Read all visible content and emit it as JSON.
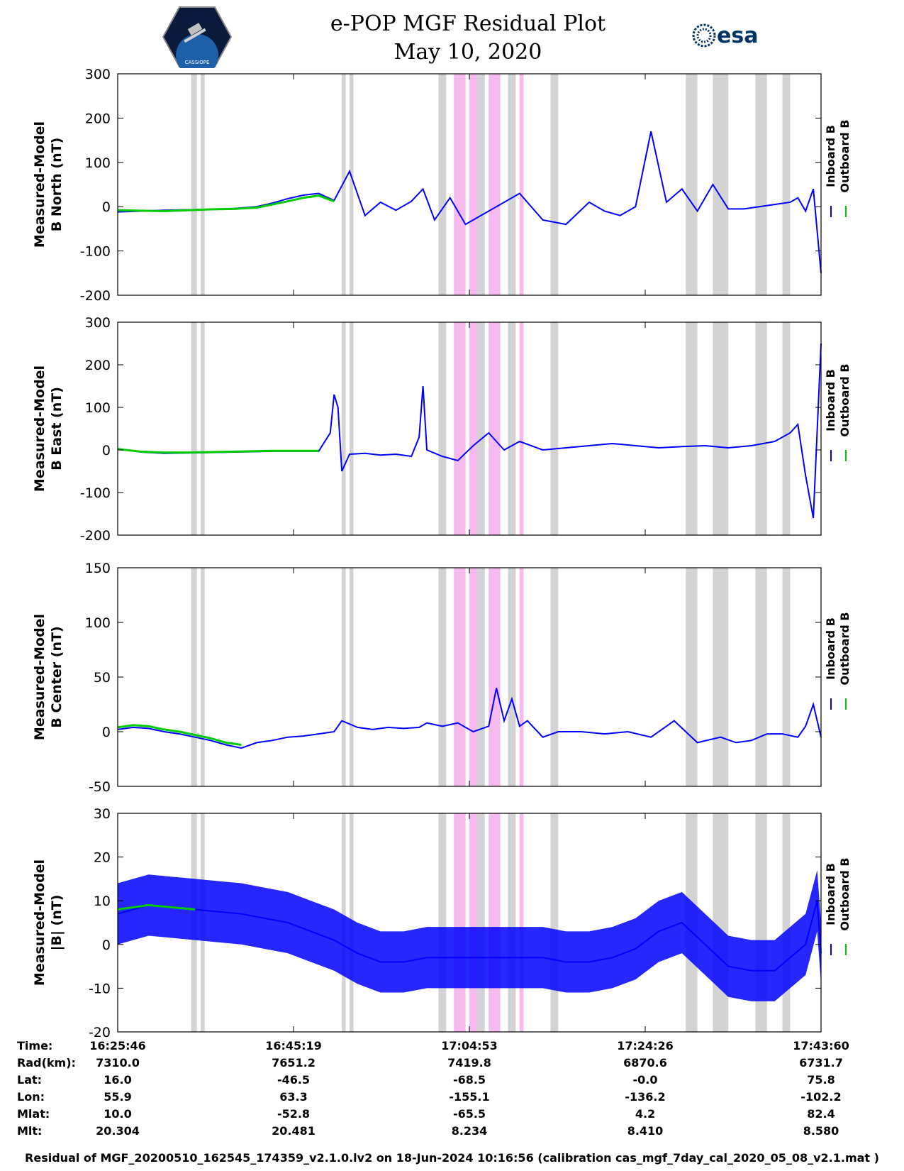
{
  "title": "e-POP MGF Residual Plot",
  "subtitle": "May 10, 2020",
  "logo_left": {
    "icon": "cassiope-mission-logo",
    "text": "CASSIOPE"
  },
  "logo_right": {
    "icon": "esa-logo",
    "text": "esa"
  },
  "legend": {
    "inboard": "Inboard B",
    "outboard": "Outboard B",
    "inboard_color": "#0000ff",
    "outboard_color": "#00cc00"
  },
  "colors": {
    "flag_gray": "#d3d3d3",
    "flag_pink": "#f6b9f0",
    "axis": "#000000"
  },
  "chart_data": [
    {
      "type": "line",
      "ylabel_line1": "Measured-Model",
      "ylabel_line2": "B North (nT)",
      "ylim": [
        -200,
        300
      ],
      "yticks": [
        "300",
        "200",
        "100",
        "0",
        "-100",
        "-200"
      ],
      "ytick_values": [
        300,
        200,
        100,
        0,
        -100,
        -200
      ],
      "x_minutes": [
        0,
        6,
        12,
        18,
        24,
        30,
        36,
        40,
        44,
        48,
        52,
        56,
        60,
        64,
        68,
        72,
        76,
        79,
        82,
        86,
        90,
        94,
        98,
        104,
        110,
        116,
        122,
        126,
        130,
        134,
        138,
        142,
        146,
        150,
        154,
        158,
        162,
        166,
        170,
        174,
        176,
        178,
        180,
        182
      ],
      "inboard": [
        -12,
        -10,
        -8,
        -7,
        -6,
        -4,
        0,
        8,
        18,
        26,
        30,
        14,
        80,
        -20,
        10,
        -8,
        12,
        40,
        -30,
        20,
        -40,
        -20,
        0,
        30,
        -30,
        -40,
        10,
        -10,
        -20,
        0,
        170,
        10,
        40,
        -10,
        50,
        -5,
        -5,
        0,
        5,
        10,
        20,
        -10,
        40,
        -150
      ],
      "outboard": [
        -8,
        -9,
        -10,
        -8,
        -6,
        -5,
        -2,
        5,
        12,
        20,
        25,
        12
      ],
      "gray_bands_min": [
        [
          19,
          20.5
        ],
        [
          21.5,
          22.5
        ],
        [
          58,
          59
        ],
        [
          60,
          61
        ],
        [
          83,
          85
        ],
        [
          93,
          95
        ],
        [
          101,
          103
        ],
        [
          112,
          114
        ],
        [
          147,
          150
        ],
        [
          154,
          158
        ],
        [
          165,
          168
        ],
        [
          172,
          174
        ]
      ],
      "pink_bands_min": [
        [
          87,
          90
        ],
        [
          91,
          93
        ],
        [
          96,
          99
        ],
        [
          104,
          105
        ]
      ]
    },
    {
      "type": "line",
      "ylabel_line1": "Measured-Model",
      "ylabel_line2": "B East (nT)",
      "ylim": [
        -200,
        300
      ],
      "yticks": [
        "300",
        "200",
        "100",
        "0",
        "-100",
        "-200"
      ],
      "ytick_values": [
        300,
        200,
        100,
        0,
        -100,
        -200
      ],
      "x_minutes": [
        0,
        6,
        12,
        18,
        24,
        30,
        36,
        40,
        44,
        48,
        52,
        55,
        56,
        57,
        58,
        60,
        64,
        68,
        72,
        76,
        78,
        79,
        80,
        84,
        88,
        92,
        96,
        100,
        104,
        110,
        116,
        122,
        128,
        134,
        140,
        146,
        152,
        158,
        164,
        170,
        174,
        176,
        178,
        180,
        182
      ],
      "inboard": [
        3,
        -5,
        -8,
        -7,
        -6,
        -5,
        -4,
        -3,
        -3,
        -3,
        -3,
        40,
        130,
        100,
        -50,
        -10,
        -8,
        -12,
        -10,
        -15,
        30,
        150,
        0,
        -15,
        -25,
        10,
        40,
        0,
        20,
        0,
        5,
        10,
        15,
        10,
        5,
        8,
        10,
        5,
        10,
        20,
        40,
        60,
        -60,
        -160,
        250
      ],
      "outboard": [
        2,
        -4,
        -6,
        -6,
        -5,
        -4,
        -3,
        -2,
        -2,
        -2,
        -2
      ],
      "gray_bands_min": [
        [
          19,
          20.5
        ],
        [
          21.5,
          22.5
        ],
        [
          58,
          59
        ],
        [
          60,
          61
        ],
        [
          83,
          85
        ],
        [
          93,
          95
        ],
        [
          101,
          103
        ],
        [
          112,
          114
        ],
        [
          147,
          150
        ],
        [
          154,
          158
        ],
        [
          165,
          168
        ],
        [
          172,
          174
        ]
      ],
      "pink_bands_min": [
        [
          87,
          90
        ],
        [
          91,
          93
        ],
        [
          96,
          99
        ],
        [
          104,
          105
        ]
      ]
    },
    {
      "type": "line",
      "ylabel_line1": "Measured-Model",
      "ylabel_line2": "B Center (nT)",
      "ylim": [
        -50,
        150
      ],
      "yticks": [
        "150",
        "100",
        "50",
        "0",
        "-50"
      ],
      "ytick_values": [
        150,
        100,
        50,
        0,
        -50
      ],
      "x_minutes": [
        0,
        4,
        8,
        12,
        16,
        20,
        24,
        28,
        32,
        36,
        40,
        44,
        48,
        52,
        56,
        58,
        62,
        66,
        70,
        74,
        78,
        80,
        84,
        88,
        92,
        96,
        98,
        100,
        102,
        104,
        106,
        110,
        114,
        120,
        126,
        132,
        138,
        144,
        150,
        156,
        160,
        164,
        168,
        172,
        176,
        178,
        180,
        182
      ],
      "inboard": [
        2,
        4,
        3,
        0,
        -2,
        -5,
        -8,
        -12,
        -15,
        -10,
        -8,
        -5,
        -4,
        -2,
        0,
        10,
        4,
        2,
        4,
        3,
        4,
        8,
        5,
        8,
        0,
        5,
        40,
        10,
        30,
        5,
        10,
        -5,
        0,
        0,
        -2,
        0,
        -5,
        10,
        -10,
        -5,
        -10,
        -8,
        -2,
        -2,
        -5,
        5,
        25,
        -5
      ],
      "outboard": [
        4,
        6,
        5,
        2,
        0,
        -3,
        -6,
        -10,
        -12
      ],
      "gray_bands_min": [
        [
          19,
          20.5
        ],
        [
          21.5,
          22.5
        ],
        [
          58,
          59
        ],
        [
          60,
          61
        ],
        [
          83,
          85
        ],
        [
          93,
          95
        ],
        [
          101,
          103
        ],
        [
          112,
          114
        ],
        [
          147,
          150
        ],
        [
          154,
          158
        ],
        [
          165,
          168
        ],
        [
          172,
          174
        ]
      ],
      "pink_bands_min": [
        [
          87,
          90
        ],
        [
          91,
          93
        ],
        [
          96,
          99
        ],
        [
          104,
          105
        ]
      ]
    },
    {
      "type": "line",
      "ylabel_line1": "Measured-Model",
      "ylabel_line2": "|B| (nT)",
      "ylim": [
        -20,
        30
      ],
      "yticks": [
        "30",
        "20",
        "10",
        "0",
        "-10",
        "-20"
      ],
      "ytick_values": [
        30,
        20,
        10,
        0,
        -10,
        -20
      ],
      "x_minutes": [
        0,
        4,
        8,
        14,
        20,
        26,
        32,
        38,
        44,
        50,
        56,
        62,
        68,
        74,
        80,
        86,
        92,
        98,
        104,
        110,
        116,
        122,
        128,
        134,
        140,
        146,
        152,
        158,
        164,
        170,
        174,
        178,
        181,
        182
      ],
      "inboard": [
        7,
        8,
        9,
        8.5,
        8,
        7.5,
        7,
        6,
        5,
        3,
        1,
        -2,
        -4,
        -4,
        -3,
        -3,
        -3,
        -3,
        -3,
        -3,
        -4,
        -4,
        -3,
        -1,
        3,
        5,
        0,
        -5,
        -6,
        -6,
        -3,
        0,
        10,
        -2
      ],
      "outboard": [
        8,
        8.5,
        9,
        8.5,
        8
      ],
      "band_half_width": 7,
      "gray_bands_min": [
        [
          19,
          20.5
        ],
        [
          21.5,
          22.5
        ],
        [
          58,
          59
        ],
        [
          60,
          61
        ],
        [
          83,
          85
        ],
        [
          93,
          95
        ],
        [
          101,
          103
        ],
        [
          112,
          114
        ],
        [
          147,
          150
        ],
        [
          154,
          158
        ],
        [
          165,
          168
        ],
        [
          172,
          174
        ]
      ],
      "pink_bands_min": [
        [
          87,
          90
        ],
        [
          91,
          93
        ],
        [
          96,
          99
        ],
        [
          104,
          105
        ]
      ]
    }
  ],
  "info_table": {
    "labels": [
      "Time:",
      "Rad(km):",
      "Lat:",
      "Lon:",
      "Mlat:",
      "Mlt:"
    ],
    "columns": [
      [
        "16:25:46",
        "7310.0",
        "16.0",
        "55.9",
        "10.0",
        "20.304"
      ],
      [
        "16:45:19",
        "7651.2",
        "-46.5",
        "63.3",
        "-52.8",
        "20.481"
      ],
      [
        "17:04:53",
        "7419.8",
        "-68.5",
        "-155.1",
        "-65.5",
        "8.234"
      ],
      [
        "17:24:26",
        "6870.6",
        "-0.0",
        "-136.2",
        "4.2",
        "8.410"
      ],
      [
        "17:43:60",
        "6731.7",
        "75.8",
        "-102.2",
        "82.4",
        "8.580"
      ]
    ]
  },
  "footer": "Residual of MGF_20200510_162545_174359_v2.1.0.lv2 on 18-Jun-2024 10:16:56 (calibration cas_mgf_7day_cal_2020_05_08_v2.1.mat )"
}
